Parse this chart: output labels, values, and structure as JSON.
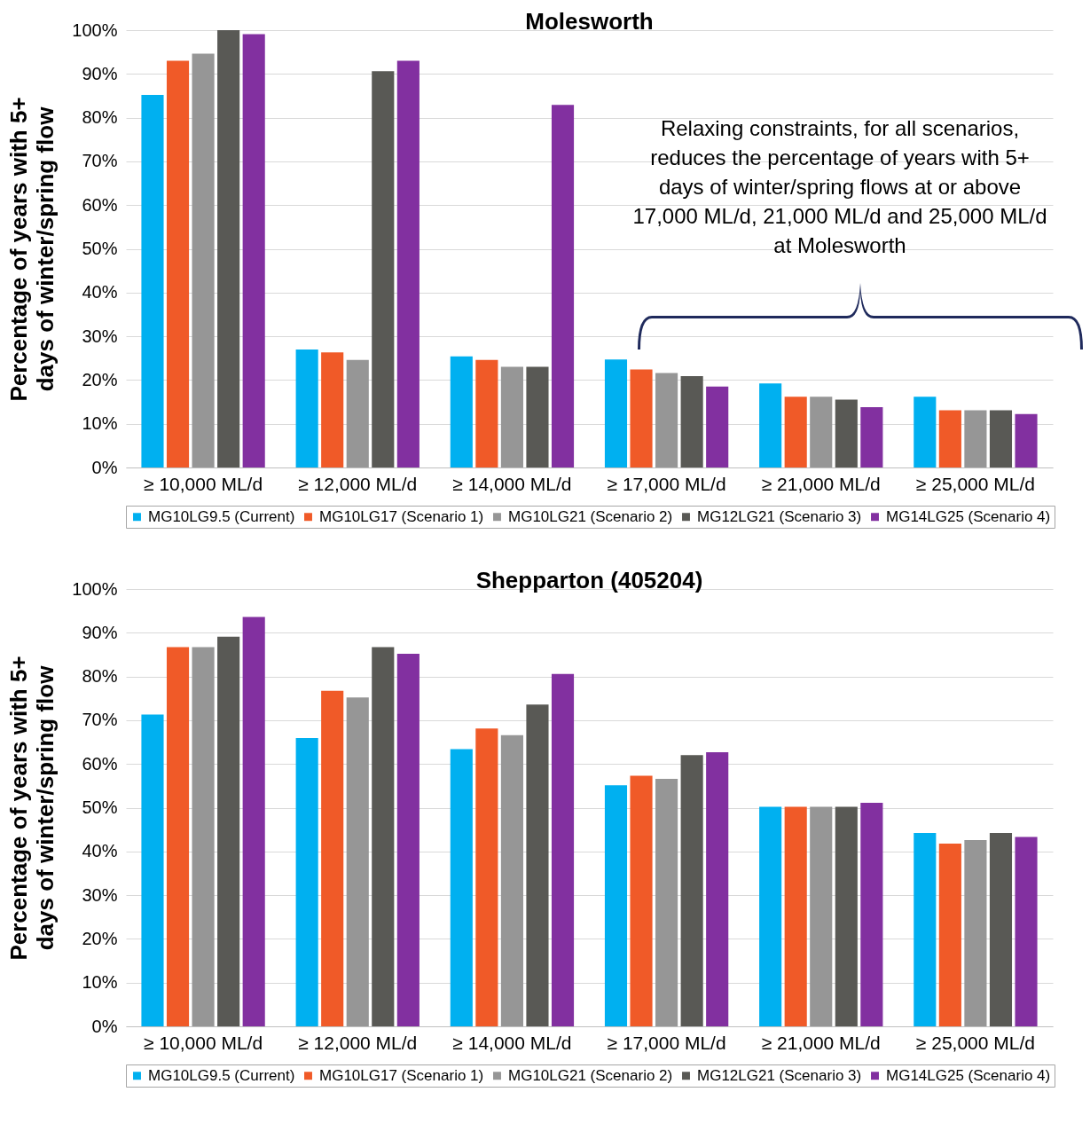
{
  "chart_data": [
    {
      "type": "bar",
      "title": "Molesworth",
      "ylabel": "Percentage of years with 5+ days of winter/spring flow",
      "categories": [
        "≥ 10,000 ML/d",
        "≥ 12,000 ML/d",
        "≥ 14,000 ML/d",
        "≥ 17,000 ML/d",
        "≥ 21,000 ML/d",
        "≥ 25,000 ML/d"
      ],
      "series": [
        {
          "name": "MG10LG9.5 (Current)",
          "color": "#00b0f0",
          "values": [
            85.2,
            27.0,
            25.4,
            24.7,
            19.2,
            16.2
          ]
        },
        {
          "name": "MG10LG17 (Scenario 1)",
          "color": "#f05a28",
          "values": [
            93.0,
            26.3,
            24.6,
            22.4,
            16.2,
            13.1
          ]
        },
        {
          "name": "MG10LG21 (Scenario 2)",
          "color": "#969696",
          "values": [
            94.6,
            24.6,
            23.0,
            21.6,
            16.2,
            13.1
          ]
        },
        {
          "name": "MG12LG21 (Scenario 3)",
          "color": "#595955",
          "values": [
            100.0,
            90.6,
            23.0,
            20.9,
            15.5,
            13.1
          ]
        },
        {
          "name": "MG14LG25 (Scenario 4)",
          "color": "#8230a0",
          "values": [
            99.1,
            93.0,
            82.9,
            18.5,
            13.8,
            12.2
          ]
        }
      ],
      "ylim": [
        0,
        100
      ],
      "yticks": [
        {
          "value": 0,
          "label": "0%"
        },
        {
          "value": 10,
          "label": "10%"
        },
        {
          "value": 20,
          "label": "20%"
        },
        {
          "value": 30,
          "label": "30%"
        },
        {
          "value": 40,
          "label": "40%"
        },
        {
          "value": 50,
          "label": "50%"
        },
        {
          "value": 60,
          "label": "60%"
        },
        {
          "value": 70,
          "label": "70%"
        },
        {
          "value": 80,
          "label": "80%"
        },
        {
          "value": 90,
          "label": "90%"
        },
        {
          "value": 100,
          "label": "100%"
        }
      ],
      "grid": "y",
      "legend": "bottom",
      "annotations": [
        "Relaxing constraints, for all scenarios, reduces the percentage of years with 5+ days of winter/spring flows at or above 17,000 ML/d, 21,000 ML/d and 25,000 ML/d at Molesworth"
      ]
    },
    {
      "type": "bar",
      "title": "Shepparton (405204)",
      "ylabel": "Percentage of years with 5+ days of winter/spring flow",
      "categories": [
        "≥ 10,000 ML/d",
        "≥ 12,000 ML/d",
        "≥ 14,000 ML/d",
        "≥ 17,000 ML/d",
        "≥ 21,000 ML/d",
        "≥ 25,000 ML/d"
      ],
      "series": [
        {
          "name": "MG10LG9.5 (Current)",
          "color": "#00b0f0",
          "values": [
            71.3,
            65.9,
            63.4,
            55.1,
            50.2,
            44.2
          ]
        },
        {
          "name": "MG10LG17 (Scenario 1)",
          "color": "#f05a28",
          "values": [
            86.7,
            76.7,
            68.1,
            57.3,
            50.2,
            41.8
          ]
        },
        {
          "name": "MG10LG21 (Scenario 2)",
          "color": "#969696",
          "values": [
            86.7,
            75.2,
            66.6,
            56.6,
            50.2,
            42.6
          ]
        },
        {
          "name": "MG12LG21 (Scenario 3)",
          "color": "#595955",
          "values": [
            89.1,
            86.7,
            73.6,
            62.0,
            50.2,
            44.2
          ]
        },
        {
          "name": "MG14LG25 (Scenario 4)",
          "color": "#8230a0",
          "values": [
            93.6,
            85.2,
            80.6,
            62.7,
            51.1,
            43.3
          ]
        }
      ],
      "ylim": [
        0,
        100
      ],
      "yticks": [
        {
          "value": 0,
          "label": "0%"
        },
        {
          "value": 10,
          "label": "10%"
        },
        {
          "value": 20,
          "label": "20%"
        },
        {
          "value": 30,
          "label": "30%"
        },
        {
          "value": 40,
          "label": "40%"
        },
        {
          "value": 50,
          "label": "50%"
        },
        {
          "value": 60,
          "label": "60%"
        },
        {
          "value": 70,
          "label": "70%"
        },
        {
          "value": 80,
          "label": "80%"
        },
        {
          "value": 90,
          "label": "90%"
        },
        {
          "value": 100,
          "label": "100%"
        }
      ],
      "grid": "y",
      "legend": "bottom"
    }
  ]
}
